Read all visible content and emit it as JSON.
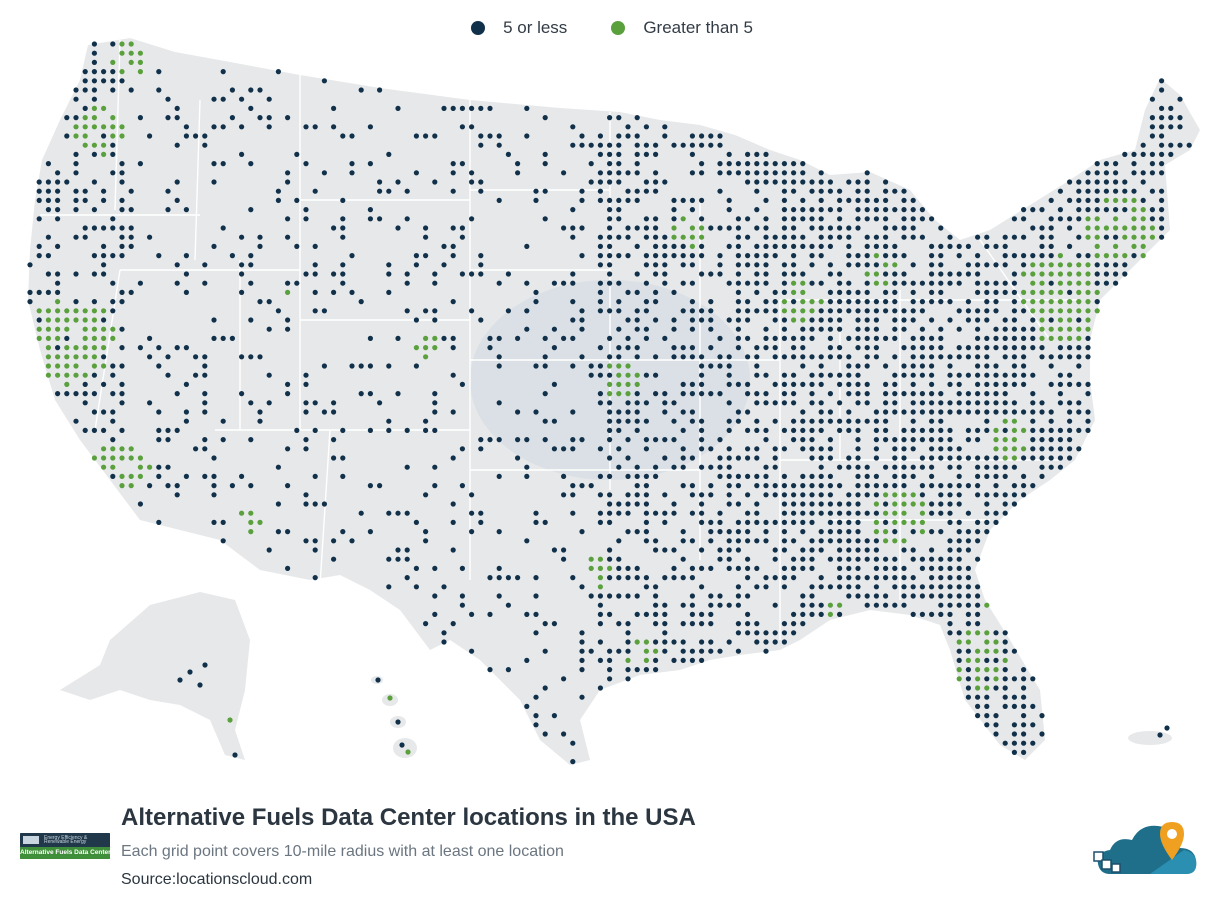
{
  "legend": {
    "items": [
      {
        "label": "5 or less",
        "color": "#11304a"
      },
      {
        "label": "Greater than 5",
        "color": "#5aa03c"
      }
    ]
  },
  "map": {
    "land_color": "#e6e8ea",
    "state_border_color": "#ffffff",
    "highlight_color": "#cfd8e0"
  },
  "footer": {
    "title": "Alternative Fuels Data Center locations in the USA",
    "subtitle": "Each grid point covers 10-mile radius with at least one location",
    "source": "Source:locationscloud.com",
    "afdc_logo_text": "Alternative Fuels Data Center",
    "afdc_logo_small_text": "Energy Efficiency & Renewable Energy"
  }
}
